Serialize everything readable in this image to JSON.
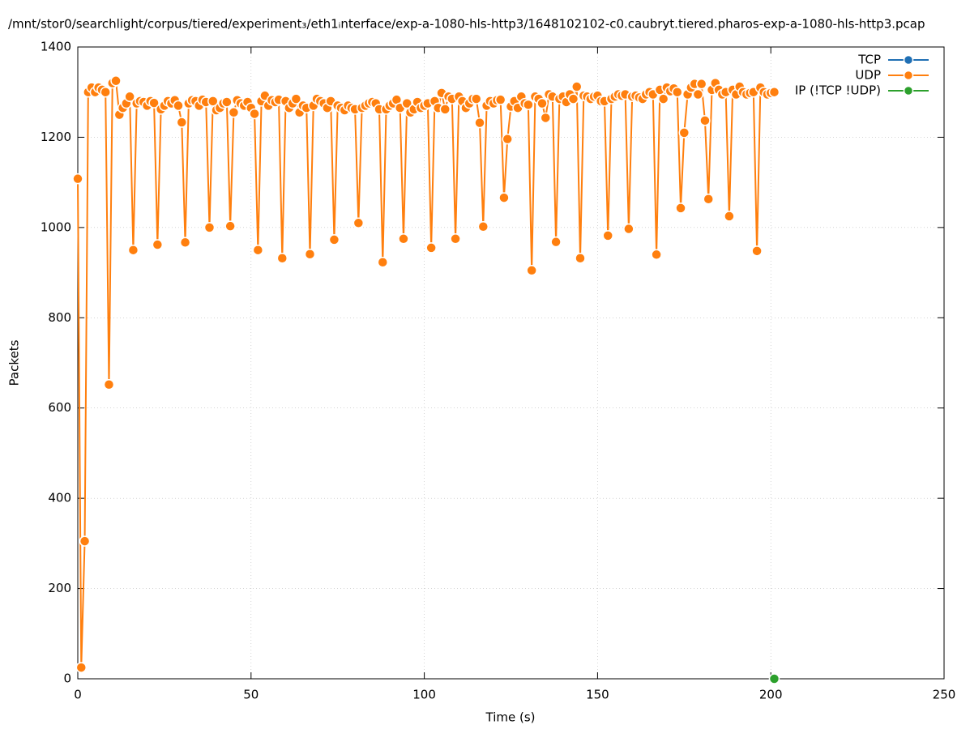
{
  "chart_data": {
    "type": "line",
    "title": "/mnt/stor0/searchlight/corpus/tiered/experiment₃/eth1ᵢnterface/exp-a-1080-hls-http3/1648102102-c0.caubryt.tiered.pharos-exp-a-1080-hls-http3.pcap",
    "x_label": "Time (s)",
    "y_label": "Packets",
    "xlim": [
      0,
      250
    ],
    "xticks": [
      0,
      50,
      100,
      150,
      200,
      250
    ],
    "ylim": [
      0,
      1400
    ],
    "yticks": [
      0,
      200,
      400,
      600,
      800,
      1000,
      1200,
      1400
    ],
    "grid": true,
    "legend": "top-right",
    "series": [
      {
        "name": "TCP",
        "color": "#1f6fb4",
        "x": [],
        "values": []
      },
      {
        "name": "UDP",
        "color": "#ff7f0e",
        "x": [
          0,
          1,
          2,
          3,
          4,
          5,
          6,
          7,
          8,
          9,
          10,
          11,
          12,
          13,
          14,
          15,
          16,
          17,
          18,
          19,
          20,
          21,
          22,
          23,
          24,
          25,
          26,
          27,
          28,
          29,
          30,
          31,
          32,
          33,
          34,
          35,
          36,
          37,
          38,
          39,
          40,
          41,
          42,
          43,
          44,
          45,
          46,
          47,
          48,
          49,
          50,
          51,
          52,
          53,
          54,
          55,
          56,
          57,
          58,
          59,
          60,
          61,
          62,
          63,
          64,
          65,
          66,
          67,
          68,
          69,
          70,
          71,
          72,
          73,
          74,
          75,
          76,
          77,
          78,
          79,
          80,
          81,
          82,
          83,
          84,
          85,
          86,
          87,
          88,
          89,
          90,
          91,
          92,
          93,
          94,
          95,
          96,
          97,
          98,
          99,
          100,
          101,
          102,
          103,
          104,
          105,
          106,
          107,
          108,
          109,
          110,
          111,
          112,
          113,
          114,
          115,
          116,
          117,
          118,
          119,
          120,
          121,
          122,
          123,
          124,
          125,
          126,
          127,
          128,
          129,
          130,
          131,
          132,
          133,
          134,
          135,
          136,
          137,
          138,
          139,
          140,
          141,
          142,
          143,
          144,
          145,
          146,
          147,
          148,
          149,
          150,
          151,
          152,
          153,
          154,
          155,
          156,
          157,
          158,
          159,
          160,
          161,
          162,
          163,
          164,
          165,
          166,
          167,
          168,
          169,
          170,
          171,
          172,
          173,
          174,
          175,
          176,
          177,
          178,
          179,
          180,
          181,
          182,
          183,
          184,
          185,
          186,
          187,
          188,
          189,
          190,
          191,
          192,
          193,
          194,
          195,
          196,
          197,
          198,
          199,
          200,
          201
        ],
        "values": [
          1108,
          25,
          305,
          1300,
          1310,
          1300,
          1310,
          1305,
          1300,
          652,
          1320,
          1325,
          1250,
          1265,
          1275,
          1290,
          950,
          1275,
          1280,
          1278,
          1270,
          1280,
          1276,
          962,
          1262,
          1270,
          1280,
          1275,
          1282,
          1270,
          1233,
          967,
          1275,
          1282,
          1280,
          1270,
          1283,
          1278,
          1000,
          1280,
          1260,
          1265,
          1275,
          1278,
          1003,
          1255,
          1282,
          1275,
          1270,
          1278,
          1265,
          1252,
          950,
          1280,
          1292,
          1270,
          1282,
          1278,
          1283,
          932,
          1280,
          1265,
          1275,
          1285,
          1255,
          1270,
          1265,
          941,
          1270,
          1285,
          1280,
          1275,
          1265,
          1280,
          973,
          1270,
          1265,
          1260,
          1270,
          1265,
          1262,
          1010,
          1265,
          1270,
          1275,
          1278,
          1275,
          1262,
          923,
          1262,
          1270,
          1275,
          1283,
          1265,
          975,
          1275,
          1255,
          1262,
          1278,
          1265,
          1270,
          1275,
          955,
          1280,
          1265,
          1298,
          1262,
          1290,
          1285,
          975,
          1290,
          1280,
          1265,
          1275,
          1285,
          1285,
          1232,
          1002,
          1270,
          1280,
          1275,
          1282,
          1283,
          1066,
          1196,
          1268,
          1280,
          1265,
          1290,
          1275,
          1272,
          905,
          1290,
          1285,
          1275,
          1243,
          1295,
          1290,
          968,
          1285,
          1290,
          1278,
          1295,
          1285,
          1312,
          932,
          1292,
          1290,
          1285,
          1290,
          1292,
          1280,
          1280,
          982,
          1285,
          1290,
          1295,
          1292,
          1295,
          997,
          1290,
          1292,
          1288,
          1285,
          1295,
          1300,
          1295,
          940,
          1305,
          1285,
          1310,
          1302,
          1308,
          1300,
          1043,
          1210,
          1295,
          1310,
          1318,
          1295,
          1318,
          1237,
          1063,
          1305,
          1320,
          1305,
          1295,
          1300,
          1025,
          1305,
          1295,
          1312,
          1300,
          1295,
          1298,
          1300,
          948,
          1310,
          1300,
          1295,
          1298,
          1300
        ]
      },
      {
        "name": "IP (!TCP  !UDP)",
        "color": "#2ca02c",
        "x": [
          201
        ],
        "values": [
          0
        ]
      }
    ]
  }
}
